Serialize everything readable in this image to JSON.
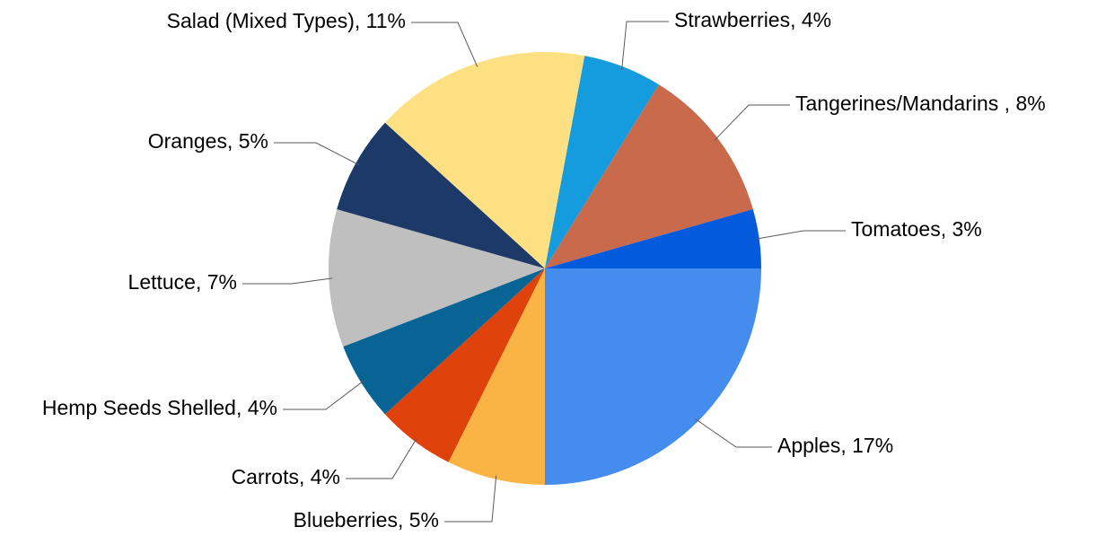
{
  "chart_data": {
    "type": "pie",
    "title": "",
    "start_direction": "east",
    "direction": "clockwise",
    "slices": [
      {
        "name": "Apples",
        "label": "Apples, 17%",
        "value": 17,
        "color": "#448CEE"
      },
      {
        "name": "Blueberries",
        "label": "Blueberries, 5%",
        "value": 5,
        "color": "#FAB443"
      },
      {
        "name": "Carrots",
        "label": "Carrots, 4%",
        "value": 4,
        "color": "#E0420C"
      },
      {
        "name": "Hemp Seeds Shelled",
        "label": "Hemp Seeds Shelled, 4%",
        "value": 4,
        "color": "#076494"
      },
      {
        "name": "Lettuce",
        "label": "Lettuce, 7%",
        "value": 7,
        "color": "#BFBFBF"
      },
      {
        "name": "Oranges",
        "label": "Oranges, 5%",
        "value": 5,
        "color": "#1C3968"
      },
      {
        "name": "Salad (Mixed Types)",
        "label": "Salad (Mixed Types), 11%",
        "value": 11,
        "color": "#FDE082"
      },
      {
        "name": "Strawberries",
        "label": "Strawberries, 4%",
        "value": 4,
        "color": "#149CDE"
      },
      {
        "name": "Tangerines/Mandarins",
        "label": "Tangerines/Mandarins , 8%",
        "value": 8,
        "color": "#C96A4C"
      },
      {
        "name": "Tomatoes",
        "label": "Tomatoes, 3%",
        "value": 3,
        "color": "#035ADD"
      }
    ]
  }
}
